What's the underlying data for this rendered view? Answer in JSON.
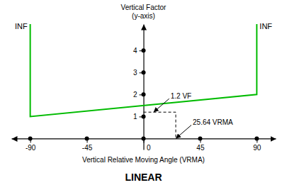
{
  "chart_data": {
    "type": "line",
    "title": "LINEAR",
    "xlabel": "Vertical Relative Moving Angle (VRMA)",
    "ylabel": "Vertical Factor\n(y-axis)",
    "xlim": [
      -105,
      105
    ],
    "ylim": [
      -0.5,
      5.2
    ],
    "xticks": [
      -90,
      -45,
      0,
      45,
      90
    ],
    "yticks": [
      1,
      2,
      3,
      4
    ],
    "grid": false,
    "series": [
      {
        "type": "line",
        "color": "#00bb00",
        "x": [
          -90,
          -90,
          90,
          90
        ],
        "values": [
          5.2,
          1.0,
          2.0,
          5.2
        ]
      },
      {
        "type": "line",
        "color": "black",
        "line_style": "dashed",
        "x": [
          0,
          25.64,
          25.64
        ],
        "values": [
          1.2,
          1.2,
          0.0
        ]
      },
      {
        "type": "scatter",
        "color": "black",
        "marker": "circle",
        "x": [
          0,
          0,
          0,
          0
        ],
        "values": [
          1,
          2,
          3,
          4
        ]
      },
      {
        "type": "scatter",
        "color": "black",
        "marker": "circle",
        "x": [
          -90,
          -45,
          0,
          45,
          90
        ],
        "values": [
          0,
          0,
          0,
          0,
          0
        ]
      }
    ],
    "annotations": [
      {
        "text": "1.2 VF",
        "x": 8,
        "y": 1.2
      },
      {
        "text": "25.64 VRMA",
        "x": 25.64,
        "y": 0.0
      }
    ],
    "labels": [
      {
        "text": "INF",
        "x": -90,
        "y": 4.9
      },
      {
        "text": "INF",
        "x": 90,
        "y": 4.9
      }
    ]
  }
}
